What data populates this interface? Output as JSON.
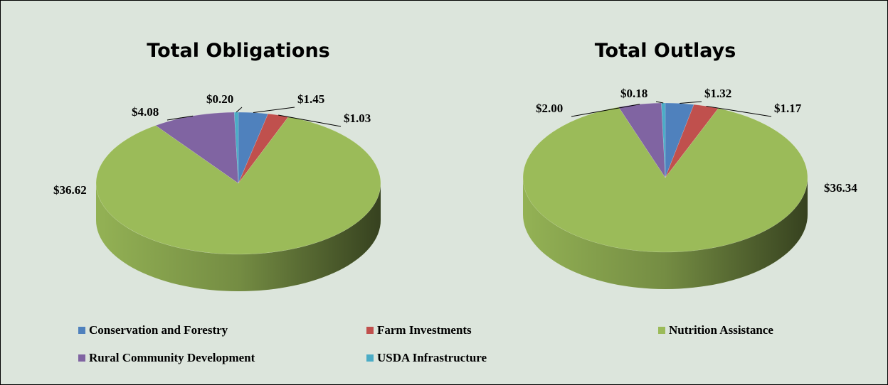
{
  "chart_data": [
    {
      "type": "pie",
      "title": "Total Obligations",
      "values": [
        1.45,
        1.03,
        36.62,
        4.08,
        0.2
      ],
      "value_labels": [
        "$1.45",
        "$1.03",
        "$36.62",
        "$4.08",
        "$0.20"
      ]
    },
    {
      "type": "pie",
      "title": "Total Outlays",
      "values": [
        1.32,
        1.17,
        36.34,
        2.0,
        0.18
      ],
      "value_labels": [
        "$1.32",
        "$1.17",
        "$36.34",
        "$2.00",
        "$0.18"
      ]
    }
  ],
  "legend": {
    "position": "bottom",
    "entries": [
      {
        "name": "Conservation and Forestry",
        "color": "#4f81bd"
      },
      {
        "name": "Farm Investments",
        "color": "#c0504d"
      },
      {
        "name": "Nutrition Assistance",
        "color": "#9bbb59"
      },
      {
        "name": "Rural Community Development",
        "color": "#8064a2"
      },
      {
        "name": "USDA Infrastructure",
        "color": "#4bacc6"
      }
    ]
  }
}
